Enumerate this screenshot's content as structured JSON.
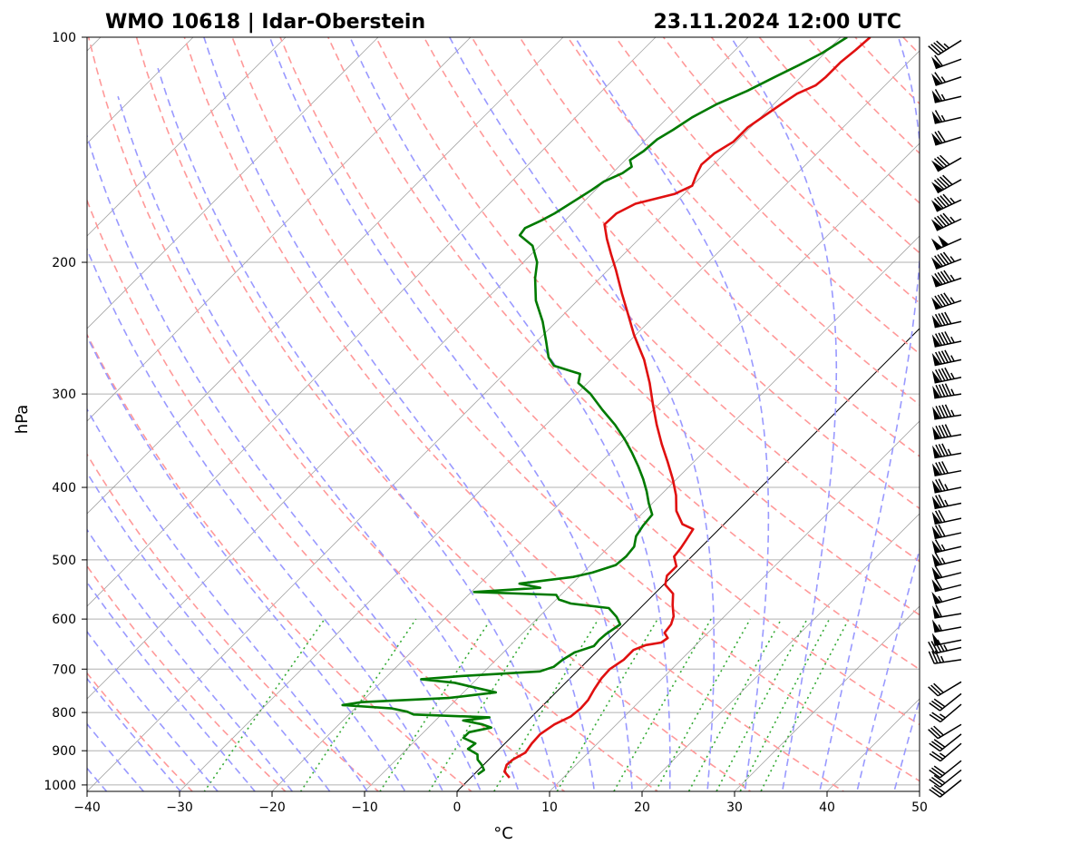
{
  "chart_data": {
    "type": "skew-t log-p sounding",
    "title_left": "WMO 10618 | Idar-Oberstein",
    "title_right": "23.11.2024 12:00 UTC",
    "xlabel": "°C",
    "ylabel": "hPa",
    "xlim": [
      -40,
      50
    ],
    "ylim": [
      1020,
      100
    ],
    "y_scale": "log",
    "x_ticks": [
      "−40",
      "−30",
      "−20",
      "−10",
      "0",
      "10",
      "20",
      "30",
      "40",
      "50"
    ],
    "y_ticks": [
      "100",
      "200",
      "300",
      "400",
      "500",
      "600",
      "700",
      "800",
      "900",
      "1000"
    ],
    "grid": true,
    "colors": {
      "temperature": "#e01010",
      "dewpoint": "#007a00",
      "dry_adiabats": "#ff9999",
      "moist_adiabats": "#9999ff",
      "mixing_ratio": "#33aa33",
      "isotherms": "#888888",
      "zero_isotherm": "#000000"
    },
    "temperature": [
      [
        978,
        4.2
      ],
      [
        960,
        3.0
      ],
      [
        940,
        2.5
      ],
      [
        925,
        2.6
      ],
      [
        905,
        3.2
      ],
      [
        880,
        2.9
      ],
      [
        855,
        2.8
      ],
      [
        830,
        3.3
      ],
      [
        810,
        4.2
      ],
      [
        790,
        4.4
      ],
      [
        770,
        4.3
      ],
      [
        745,
        3.8
      ],
      [
        720,
        3.4
      ],
      [
        700,
        3.3
      ],
      [
        680,
        3.8
      ],
      [
        660,
        3.8
      ],
      [
        650,
        4.6
      ],
      [
        645,
        6.0
      ],
      [
        636,
        6.2
      ],
      [
        626,
        5.3
      ],
      [
        610,
        5.1
      ],
      [
        595,
        4.5
      ],
      [
        575,
        3.2
      ],
      [
        555,
        2.0
      ],
      [
        540,
        0.2
      ],
      [
        525,
        -0.6
      ],
      [
        510,
        -0.6
      ],
      [
        495,
        -1.9
      ],
      [
        482,
        -2.1
      ],
      [
        470,
        -2.4
      ],
      [
        455,
        -2.8
      ],
      [
        448,
        -4.5
      ],
      [
        430,
        -6.6
      ],
      [
        410,
        -8.3
      ],
      [
        390,
        -10.4
      ],
      [
        370,
        -12.8
      ],
      [
        350,
        -15.4
      ],
      [
        330,
        -18.0
      ],
      [
        310,
        -20.6
      ],
      [
        290,
        -23.3
      ],
      [
        270,
        -26.4
      ],
      [
        250,
        -30.2
      ],
      [
        235,
        -33.0
      ],
      [
        220,
        -36.0
      ],
      [
        205,
        -39.1
      ],
      [
        195,
        -41.4
      ],
      [
        186,
        -43.5
      ],
      [
        178,
        -45.3
      ],
      [
        172,
        -45.2
      ],
      [
        167,
        -44.2
      ],
      [
        162,
        -41.0
      ],
      [
        158,
        -40.0
      ],
      [
        153,
        -40.7
      ],
      [
        148,
        -41.3
      ],
      [
        143,
        -41.1
      ],
      [
        138,
        -40.3
      ],
      [
        132,
        -40.3
      ],
      [
        127,
        -39.7
      ],
      [
        123,
        -39.2
      ],
      [
        119,
        -38.6
      ],
      [
        116,
        -37.5
      ],
      [
        113,
        -37.3
      ],
      [
        108,
        -37.3
      ],
      [
        104,
        -37.0
      ],
      [
        100,
        -36.8
      ]
    ],
    "dewpoint": [
      [
        968,
        0.4
      ],
      [
        955,
        0.6
      ],
      [
        940,
        -0.2
      ],
      [
        925,
        -1.2
      ],
      [
        910,
        -1.8
      ],
      [
        895,
        -3.4
      ],
      [
        880,
        -3.2
      ],
      [
        865,
        -5.1
      ],
      [
        850,
        -5.1
      ],
      [
        838,
        -3.2
      ],
      [
        830,
        -4.5
      ],
      [
        820,
        -7.0
      ],
      [
        812,
        -4.5
      ],
      [
        805,
        -13.0
      ],
      [
        798,
        -14.0
      ],
      [
        790,
        -16.0
      ],
      [
        782,
        -21.7
      ],
      [
        775,
        -20.0
      ],
      [
        765,
        -11.0
      ],
      [
        752,
        -6.5
      ],
      [
        740,
        -9.5
      ],
      [
        730,
        -12.0
      ],
      [
        722,
        -16.0
      ],
      [
        715,
        -12.0
      ],
      [
        705,
        -4.0
      ],
      [
        695,
        -3.0
      ],
      [
        680,
        -2.8
      ],
      [
        665,
        -2.3
      ],
      [
        652,
        -0.9
      ],
      [
        640,
        -1.0
      ],
      [
        628,
        -0.9
      ],
      [
        610,
        -0.4
      ],
      [
        596,
        -1.6
      ],
      [
        580,
        -3.4
      ],
      [
        572,
        -8.0
      ],
      [
        565,
        -9.7
      ],
      [
        557,
        -10.5
      ],
      [
        552,
        -19.7
      ],
      [
        545,
        -13.0
      ],
      [
        538,
        -15.7
      ],
      [
        527,
        -10.6
      ],
      [
        520,
        -9.0
      ],
      [
        508,
        -7.3
      ],
      [
        495,
        -7.1
      ],
      [
        480,
        -7.3
      ],
      [
        465,
        -8.2
      ],
      [
        450,
        -8.6
      ],
      [
        435,
        -8.8
      ],
      [
        420,
        -10.4
      ],
      [
        405,
        -11.9
      ],
      [
        390,
        -13.6
      ],
      [
        375,
        -15.5
      ],
      [
        360,
        -17.6
      ],
      [
        345,
        -19.9
      ],
      [
        330,
        -22.5
      ],
      [
        315,
        -25.5
      ],
      [
        300,
        -28.5
      ],
      [
        290,
        -31.0
      ],
      [
        282,
        -31.8
      ],
      [
        275,
        -35.5
      ],
      [
        268,
        -37.0
      ],
      [
        255,
        -39.0
      ],
      [
        240,
        -41.5
      ],
      [
        225,
        -44.5
      ],
      [
        210,
        -47.0
      ],
      [
        200,
        -48.5
      ],
      [
        190,
        -50.8
      ],
      [
        184,
        -53.3
      ],
      [
        180,
        -53.5
      ],
      [
        176,
        -52.6
      ],
      [
        172,
        -51.9
      ],
      [
        168,
        -51.4
      ],
      [
        164,
        -50.9
      ],
      [
        160,
        -50.4
      ],
      [
        156,
        -50.0
      ],
      [
        152,
        -48.9
      ],
      [
        149,
        -48.6
      ],
      [
        146,
        -49.5
      ],
      [
        142,
        -49.0
      ],
      [
        137,
        -48.8
      ],
      [
        133,
        -48.1
      ],
      [
        128,
        -47.4
      ],
      [
        123,
        -46.2
      ],
      [
        118,
        -44.3
      ],
      [
        113,
        -42.8
      ],
      [
        109,
        -41.5
      ],
      [
        105,
        -40.3
      ],
      [
        100,
        -39.3
      ]
    ],
    "wind_barbs": [
      {
        "p": 985,
        "u": -25,
        "v": -20
      },
      {
        "p": 955,
        "u": -25,
        "v": -20
      },
      {
        "p": 928,
        "u": -25,
        "v": -20
      },
      {
        "p": 880,
        "u": -20,
        "v": -17
      },
      {
        "p": 855,
        "u": -25,
        "v": -20
      },
      {
        "p": 830,
        "u": -25,
        "v": -15
      },
      {
        "p": 780,
        "u": -20,
        "v": -17
      },
      {
        "p": 755,
        "u": -25,
        "v": -20
      },
      {
        "p": 728,
        "u": -25,
        "v": -15
      },
      {
        "p": 680,
        "u": -35,
        "v": -5
      },
      {
        "p": 655,
        "u": -45,
        "v": -10
      },
      {
        "p": 640,
        "u": -50,
        "v": -10
      },
      {
        "p": 615,
        "u": -55,
        "v": -10
      },
      {
        "p": 590,
        "u": -60,
        "v": -10
      },
      {
        "p": 560,
        "u": -55,
        "v": -15
      },
      {
        "p": 540,
        "u": -60,
        "v": -15
      },
      {
        "p": 520,
        "u": -60,
        "v": -15
      },
      {
        "p": 500,
        "u": -65,
        "v": -15
      },
      {
        "p": 480,
        "u": -65,
        "v": -15
      },
      {
        "p": 460,
        "u": -70,
        "v": -15
      },
      {
        "p": 440,
        "u": -70,
        "v": -15
      },
      {
        "p": 420,
        "u": -75,
        "v": -15
      },
      {
        "p": 400,
        "u": -75,
        "v": -15
      },
      {
        "p": 380,
        "u": -80,
        "v": -15
      },
      {
        "p": 360,
        "u": -85,
        "v": -15
      },
      {
        "p": 340,
        "u": -90,
        "v": -15
      },
      {
        "p": 320,
        "u": -95,
        "v": -15
      },
      {
        "p": 300,
        "u": -95,
        "v": -15
      },
      {
        "p": 285,
        "u": -95,
        "v": -20
      },
      {
        "p": 270,
        "u": -95,
        "v": -20
      },
      {
        "p": 255,
        "u": -95,
        "v": -20
      },
      {
        "p": 240,
        "u": -90,
        "v": -20
      },
      {
        "p": 225,
        "u": -90,
        "v": -30
      },
      {
        "p": 210,
        "u": -90,
        "v": -30
      },
      {
        "p": 198,
        "u": -90,
        "v": -35
      },
      {
        "p": 186,
        "u": -90,
        "v": -40
      },
      {
        "p": 175,
        "u": -85,
        "v": -40
      },
      {
        "p": 165,
        "u": -85,
        "v": -40
      },
      {
        "p": 155,
        "u": -80,
        "v": -45
      },
      {
        "p": 145,
        "u": -70,
        "v": -40
      },
      {
        "p": 136,
        "u": -65,
        "v": -20
      },
      {
        "p": 128,
        "u": -65,
        "v": -15
      },
      {
        "p": 120,
        "u": -65,
        "v": -15
      },
      {
        "p": 113,
        "u": -60,
        "v": -20
      },
      {
        "p": 107,
        "u": -55,
        "v": -20
      },
      {
        "p": 101,
        "u": -40,
        "v": -25
      }
    ]
  }
}
